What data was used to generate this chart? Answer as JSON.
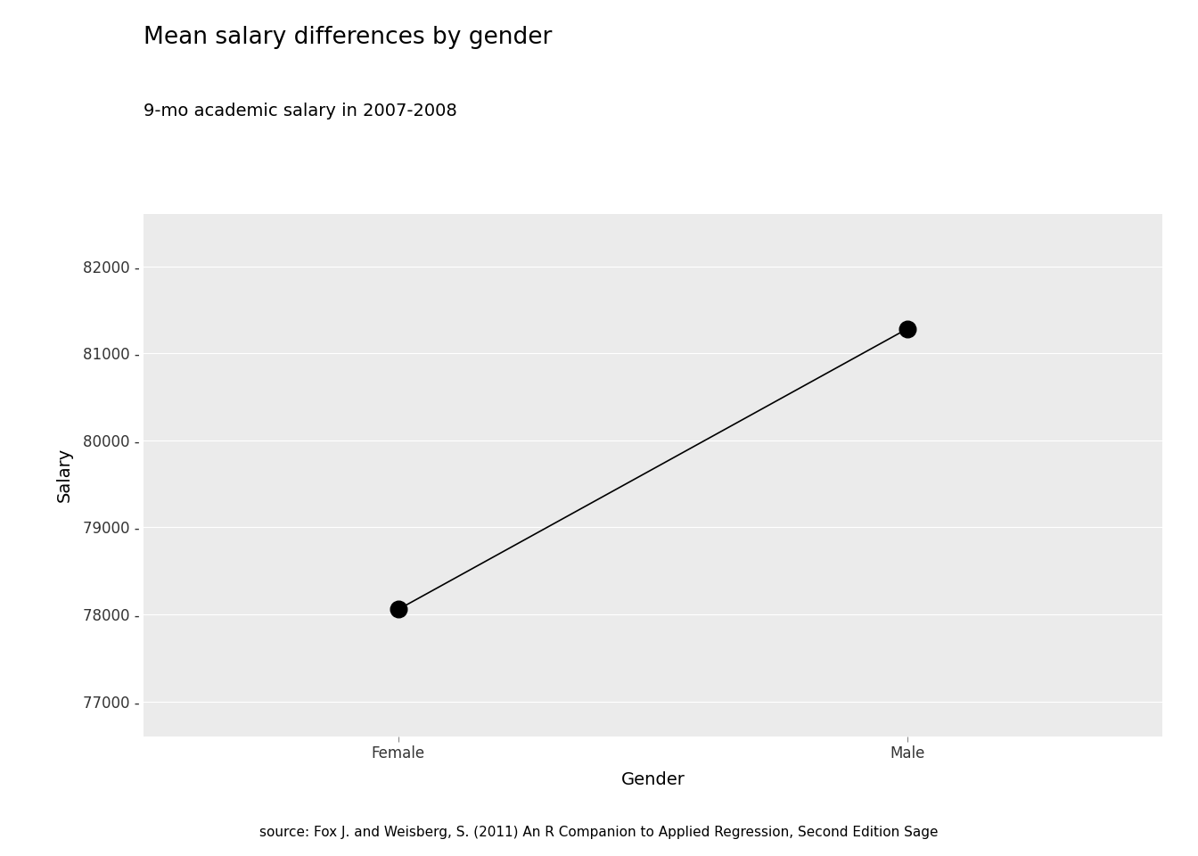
{
  "title": "Mean salary differences by gender",
  "subtitle": "9-mo academic salary in 2007-2008",
  "xlabel": "Gender",
  "ylabel": "Salary",
  "source": "source: Fox J. and Weisberg, S. (2011) An R Companion to Applied Regression, Second Edition Sage",
  "categories": [
    "Female",
    "Male"
  ],
  "x_positions": [
    1,
    2
  ],
  "y_values": [
    78057,
    81282
  ],
  "ylim": [
    76600,
    82600
  ],
  "yticks": [
    77000,
    78000,
    79000,
    80000,
    81000,
    82000
  ],
  "background_color": "#EBEBEB",
  "grid_color": "#FFFFFF",
  "point_color": "#000000",
  "line_color": "#000000",
  "point_size": 180,
  "line_width": 1.2,
  "title_fontsize": 19,
  "subtitle_fontsize": 14,
  "axis_label_fontsize": 14,
  "tick_fontsize": 12,
  "source_fontsize": 11
}
